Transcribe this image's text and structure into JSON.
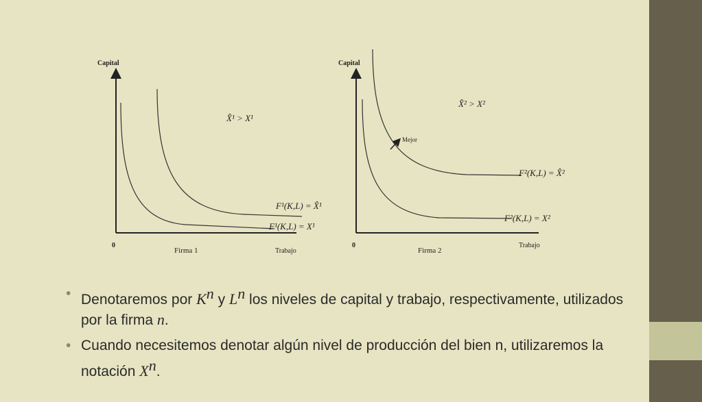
{
  "colors": {
    "background": "#e6e4c2",
    "sidebar": "#665f4b",
    "sidebar_band": "#c4c49a",
    "line": "#3a3a3a"
  },
  "figure1": {
    "ylabel": "Capital",
    "xlabel": "Trabajo",
    "origin": "0",
    "title": "Firma 1",
    "inequality": "X̂¹ > X¹",
    "label_high": "F¹(K,L) = X̂¹",
    "label_low": "F¹(K,L) = X¹"
  },
  "figure2": {
    "ylabel": "Capital",
    "xlabel": "Trabajo",
    "origin": "0",
    "title": "Firma 2",
    "inequality": "X̂² > X²",
    "arrow_label": "Mejor",
    "label_high": "F²(K,L) = X̂²",
    "label_low": "F²(K,L) = X²"
  },
  "bullets": {
    "b1": {
      "t1": "Denotaremos por ",
      "k": "K",
      "k_sup": "n",
      "t2": " y ",
      "l": "L",
      "l_sup": "n",
      "t3": " los niveles de capital y trabajo, respectivamente, utilizados por la firma ",
      "n": "n",
      "t4": "."
    },
    "b2": {
      "t1": "Cuando necesitemos denotar algún nivel de producción del bien n, utilizaremos la notación ",
      "x": "X",
      "x_sup": "n",
      "t2": "."
    }
  }
}
